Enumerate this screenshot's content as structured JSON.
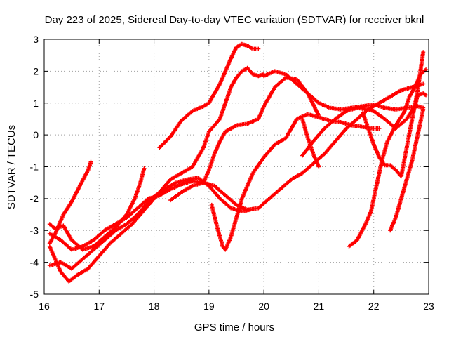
{
  "chart_data": {
    "type": "scatter",
    "title": "Day 223 of 2025, Sidereal Day-to-day VTEC variation (SDTVAR) for receiver bknl",
    "xlabel": "GPS time / hours",
    "ylabel": "SDTVAR / TECUs",
    "xlim": [
      16,
      23
    ],
    "ylim": [
      -5,
      3
    ],
    "xticks": [
      "16",
      "17",
      "18",
      "19",
      "20",
      "21",
      "22",
      "23"
    ],
    "yticks": [
      "-5",
      "-4",
      "-3",
      "-2",
      "-1",
      "0",
      "1",
      "2",
      "3"
    ],
    "grid": true,
    "marker": "plus",
    "color": "#ff0000",
    "series": [
      {
        "x": [
          16.1,
          16.2,
          16.35,
          16.5,
          16.65,
          16.8,
          16.85
        ],
        "y": [
          -3.4,
          -3.1,
          -2.5,
          -2.1,
          -1.6,
          -1.1,
          -0.85
        ]
      },
      {
        "x": [
          16.1,
          16.2,
          16.35,
          16.5,
          16.7,
          16.9,
          17.1,
          17.3,
          17.5,
          17.65,
          17.75,
          17.82
        ],
        "y": [
          -2.8,
          -2.95,
          -2.85,
          -3.3,
          -3.6,
          -3.5,
          -3.2,
          -2.9,
          -2.5,
          -2.0,
          -1.5,
          -1.05
        ]
      },
      {
        "x": [
          16.1,
          16.3,
          16.45,
          16.6,
          16.8,
          17.0,
          17.2,
          17.4,
          17.6,
          17.8,
          18.0,
          18.2,
          18.4,
          18.6,
          18.8,
          19.0,
          19.2,
          19.4,
          19.6,
          19.75
        ],
        "y": [
          -3.5,
          -4.3,
          -4.6,
          -4.4,
          -4.2,
          -3.8,
          -3.4,
          -3.1,
          -2.8,
          -2.4,
          -2.0,
          -1.7,
          -1.5,
          -1.4,
          -1.35,
          -1.6,
          -2.0,
          -2.3,
          -2.4,
          -2.35
        ]
      },
      {
        "x": [
          16.1,
          16.3,
          16.5,
          16.7,
          16.9,
          17.1,
          17.3,
          17.5,
          17.7,
          17.9,
          18.1,
          18.3,
          18.5,
          18.7,
          18.9,
          19.0,
          19.1,
          19.2,
          19.3,
          19.5,
          19.7,
          19.9,
          20.0,
          20.2,
          20.4,
          20.6,
          20.8,
          21.0
        ],
        "y": [
          -3.1,
          -3.3,
          -3.6,
          -3.5,
          -3.3,
          -3.0,
          -2.8,
          -2.6,
          -2.3,
          -2.0,
          -1.9,
          -1.7,
          -1.55,
          -1.45,
          -1.5,
          -1.1,
          -0.6,
          -0.2,
          0.1,
          0.3,
          0.35,
          0.5,
          0.9,
          1.5,
          1.8,
          1.75,
          1.3,
          0.6
        ]
      },
      {
        "x": [
          16.1,
          16.3,
          16.5,
          16.7,
          16.9,
          17.1,
          17.3,
          17.5,
          17.7,
          17.9,
          18.1,
          18.3,
          18.5,
          18.7,
          18.9,
          19.0,
          19.1,
          19.2,
          19.3,
          19.4,
          19.5,
          19.6,
          19.7,
          19.8,
          19.9,
          20.0
        ],
        "y": [
          -4.1,
          -4.0,
          -4.2,
          -3.9,
          -3.6,
          -3.3,
          -3.0,
          -2.8,
          -2.5,
          -2.1,
          -1.8,
          -1.4,
          -1.2,
          -1.0,
          -0.4,
          0.1,
          0.3,
          0.5,
          1.0,
          1.5,
          1.8,
          2.0,
          2.1,
          1.9,
          1.85,
          1.9
        ]
      },
      {
        "x": [
          18.1,
          18.3,
          18.5,
          18.7,
          18.9,
          19.0,
          19.1,
          19.2,
          19.3,
          19.4,
          19.5,
          19.6,
          19.7,
          19.8,
          19.9
        ],
        "y": [
          -0.4,
          -0.05,
          0.45,
          0.75,
          0.9,
          1.0,
          1.3,
          1.6,
          2.0,
          2.4,
          2.75,
          2.85,
          2.8,
          2.7,
          2.7
        ]
      },
      {
        "x": [
          18.3,
          18.5,
          18.7,
          18.9,
          19.1,
          19.3,
          19.5,
          19.7,
          19.9,
          20.1,
          20.3,
          20.5,
          20.7,
          20.9,
          21.1,
          21.3,
          21.5,
          21.7,
          21.9,
          22.1,
          22.3,
          22.5,
          22.7,
          22.9
        ],
        "y": [
          -2.05,
          -1.8,
          -1.6,
          -1.5,
          -1.6,
          -1.9,
          -2.2,
          -2.35,
          -2.3,
          -2.0,
          -1.7,
          -1.4,
          -1.2,
          -0.9,
          -0.6,
          -0.2,
          0.2,
          0.5,
          0.8,
          1.0,
          1.2,
          1.4,
          1.5,
          1.6
        ]
      },
      {
        "x": [
          19.05,
          19.15,
          19.25,
          19.3,
          19.4,
          19.5,
          19.6,
          19.7,
          19.8,
          20.0,
          20.2,
          20.4,
          20.5,
          20.6,
          20.8,
          21.0,
          21.2,
          21.4,
          21.6,
          21.8,
          22.0,
          22.1
        ],
        "y": [
          -2.2,
          -2.9,
          -3.5,
          -3.6,
          -3.2,
          -2.6,
          -2.0,
          -1.6,
          -1.2,
          -0.7,
          -0.3,
          -0.1,
          0.2,
          0.5,
          0.65,
          0.55,
          0.45,
          0.4,
          0.3,
          0.25,
          0.2,
          0.2
        ]
      },
      {
        "x": [
          20.0,
          20.2,
          20.4,
          20.6,
          20.8,
          21.0,
          21.2,
          21.4,
          21.6,
          21.8,
          22.0,
          22.2,
          22.4,
          22.6,
          22.8,
          22.9
        ],
        "y": [
          1.85,
          2.0,
          1.9,
          1.6,
          1.3,
          1.0,
          0.85,
          0.8,
          0.85,
          0.9,
          0.95,
          0.85,
          0.8,
          0.85,
          0.9,
          0.85
        ]
      },
      {
        "x": [
          20.7,
          20.9,
          21.1,
          21.3,
          21.5,
          21.7,
          21.9,
          22.0,
          22.2,
          22.4,
          22.6,
          22.75,
          22.8,
          22.9,
          22.95
        ],
        "y": [
          -0.65,
          -0.2,
          0.2,
          0.5,
          0.75,
          0.85,
          0.8,
          0.75,
          0.5,
          0.2,
          0.5,
          0.9,
          1.25,
          1.3,
          1.25
        ]
      },
      {
        "x": [
          20.7,
          20.8,
          20.9,
          21.0
        ],
        "y": [
          0.5,
          -0.1,
          -0.6,
          -1.0
        ]
      },
      {
        "x": [
          21.55,
          21.7,
          21.85,
          21.95,
          22.05,
          22.15,
          22.25,
          22.4,
          22.55,
          22.65,
          22.75,
          22.85,
          22.95
        ],
        "y": [
          -3.5,
          -3.3,
          -2.8,
          -2.4,
          -1.6,
          -0.8,
          -0.2,
          0.3,
          0.7,
          1.2,
          1.5,
          1.9,
          2.05
        ]
      },
      {
        "x": [
          21.8,
          21.9,
          22.0,
          22.1,
          22.2,
          22.3,
          22.4,
          22.5,
          22.6,
          22.7,
          22.8,
          22.9
        ],
        "y": [
          0.7,
          0.2,
          -0.3,
          -0.7,
          -0.95,
          -0.95,
          -1.1,
          -1.3,
          -0.4,
          0.5,
          1.4,
          2.6
        ]
      },
      {
        "x": [
          22.3,
          22.4,
          22.5,
          22.6,
          22.7,
          22.8,
          22.9
        ],
        "y": [
          -3.0,
          -2.6,
          -2.0,
          -1.4,
          -0.8,
          0.0,
          0.8
        ]
      }
    ]
  }
}
